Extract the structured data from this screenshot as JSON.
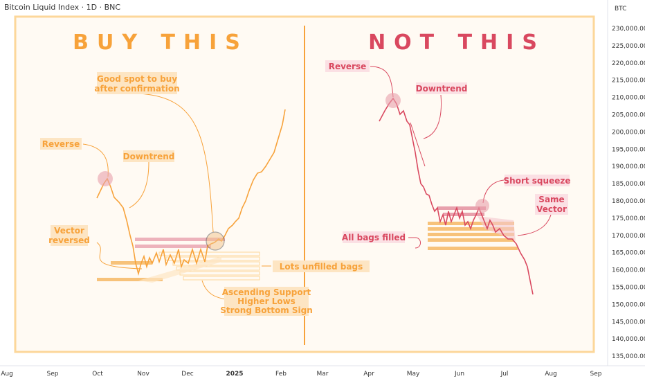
{
  "header": {
    "title": "Bitcoin Liquid Index · 1D · BNC"
  },
  "axis": {
    "currency": "BTC",
    "price_ticks": [
      "230,000.00",
      "225,000.00",
      "220,000.00",
      "215,000.00",
      "210,000.00",
      "205,000.00",
      "200,000.00",
      "195,000.00",
      "190,000.00",
      "185,000.00",
      "180,000.00",
      "175,000.00",
      "170,000.00",
      "165,000.00",
      "160,000.00",
      "155,000.00",
      "150,000.00",
      "145,000.00",
      "140,000.00",
      "135,000.00"
    ],
    "time_ticks": [
      "Aug",
      "Sep",
      "Oct",
      "Nov",
      "Dec",
      "2025",
      "Feb",
      "Mar",
      "Apr",
      "May",
      "Jun",
      "Jul",
      "Aug",
      "Sep"
    ]
  },
  "left_panel": {
    "heading": "BUY THIS",
    "labels": {
      "good_spot_1": "Good spot to buy",
      "good_spot_2": "after confirmation",
      "reverse": "Reverse",
      "downtrend": "Downtrend",
      "vector_1": "Vector",
      "vector_2": "reversed",
      "unfilled": "Lots unfilled bags",
      "ascending_1": "Ascending Support",
      "ascending_2": "Higher Lows",
      "ascending_3": "Strong Bottom Sign"
    }
  },
  "right_panel": {
    "heading": "NOT THIS",
    "labels": {
      "reverse": "Reverse",
      "downtrend": "Downtrend",
      "short_squeeze": "Short squeeze",
      "same_1": "Same",
      "same_2": "Vector",
      "bags": "All bags filled"
    }
  },
  "colors": {
    "orange": "#f7a23a",
    "red": "#d9485f",
    "pink": "#e8a0ac",
    "frame": "#fcd79a"
  }
}
